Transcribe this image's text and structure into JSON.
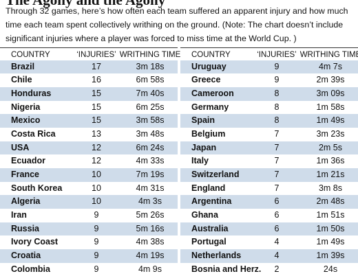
{
  "title": "The Agony and the Agony",
  "intro": "Through 32 games, here’s how often each team suffered an apparent injury and how much time each team spent collectively writhing on the ground. (Note: The chart doesn’t include significant injuries where a player was forced to miss time at the World Cup. )",
  "tables": [
    {
      "header": [
        "COUNTRY",
        "‘INJURIES’",
        "WRITHING TIME"
      ],
      "rows": [
        [
          "Brazil",
          "17",
          "3m 18s"
        ],
        [
          "Chile",
          "16",
          "6m 58s"
        ],
        [
          "Honduras",
          "15",
          "7m 40s"
        ],
        [
          "Nigeria",
          "15",
          "6m 25s"
        ],
        [
          "Mexico",
          "15",
          "3m 58s"
        ],
        [
          "Costa Rica",
          "13",
          "3m 48s"
        ],
        [
          "USA",
          "12",
          "6m 24s"
        ],
        [
          "Ecuador",
          "12",
          "4m 33s"
        ],
        [
          "France",
          "10",
          "7m 19s"
        ],
        [
          "South Korea",
          "10",
          "4m 31s"
        ],
        [
          "Algeria",
          "10",
          "4m 3s"
        ],
        [
          "Iran",
          "9",
          "5m 26s"
        ],
        [
          "Russia",
          "9",
          "5m 16s"
        ],
        [
          "Ivory Coast",
          "9",
          "4m 38s"
        ],
        [
          "Croatia",
          "9",
          "4m 19s"
        ],
        [
          "Colombia",
          "9",
          "4m 9s"
        ]
      ]
    },
    {
      "header": [
        "COUNTRY",
        "‘INJURIES’",
        "WRITHING TIME"
      ],
      "rows": [
        [
          "Uruguay",
          "9",
          "4m 7s"
        ],
        [
          "Greece",
          "9",
          "2m 39s"
        ],
        [
          "Cameroon",
          "8",
          "3m 09s"
        ],
        [
          "Germany",
          "8",
          "1m 58s"
        ],
        [
          "Spain",
          "8",
          "1m 49s"
        ],
        [
          "Belgium",
          "7",
          "3m 23s"
        ],
        [
          "Japan",
          "7",
          "2m 5s"
        ],
        [
          "Italy",
          "7",
          "1m 36s"
        ],
        [
          "Switzerland",
          "7",
          "1m 21s"
        ],
        [
          "England",
          "7",
          "3m 8s"
        ],
        [
          "Argentina",
          "6",
          "2m 48s"
        ],
        [
          "Ghana",
          "6",
          "1m 51s"
        ],
        [
          "Australia",
          "6",
          "1m 50s"
        ],
        [
          "Portugal",
          "4",
          "1m 49s"
        ],
        [
          "Netherlands",
          "4",
          "1m 39s"
        ],
        [
          "Bosnia and Herz.",
          "2",
          "24s"
        ]
      ]
    }
  ]
}
